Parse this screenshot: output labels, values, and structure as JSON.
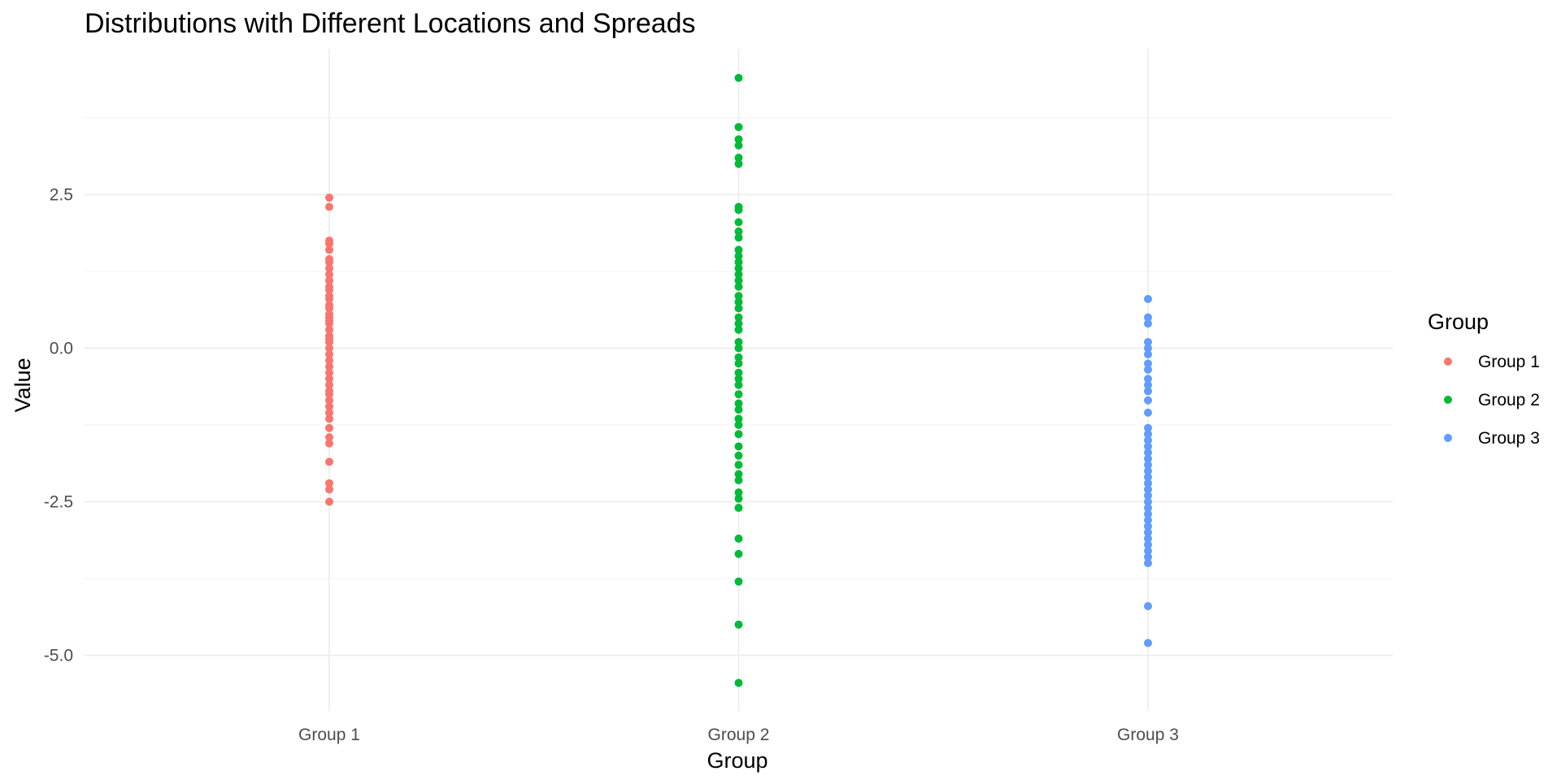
{
  "chart_data": {
    "type": "scatter",
    "title": "Distributions with Different Locations and Spreads",
    "xlabel": "Group",
    "ylabel": "Value",
    "categories": [
      "Group 1",
      "Group 2",
      "Group 3"
    ],
    "ylim": [
      -5.9,
      4.4
    ],
    "y_ticks": [
      2.5,
      0.0,
      -2.5,
      -5.0
    ],
    "y_tick_labels": [
      "2.5",
      "0.0",
      "-2.5",
      "-5.0"
    ],
    "grid": true,
    "legend": {
      "title": "Group",
      "position": "right"
    },
    "series": [
      {
        "name": "Group 1",
        "color": "#F8766D",
        "values": [
          2.45,
          2.3,
          1.75,
          1.7,
          1.6,
          1.45,
          1.4,
          1.3,
          1.2,
          1.1,
          1.0,
          0.95,
          0.85,
          0.8,
          0.7,
          0.65,
          0.55,
          0.5,
          0.45,
          0.4,
          0.3,
          0.2,
          0.15,
          0.1,
          0.0,
          -0.1,
          -0.2,
          -0.3,
          -0.4,
          -0.5,
          -0.6,
          -0.7,
          -0.75,
          -0.85,
          -0.95,
          -1.05,
          -1.15,
          -1.3,
          -1.45,
          -1.55,
          -1.85,
          -2.2,
          -2.3,
          -2.5
        ]
      },
      {
        "name": "Group 2",
        "color": "#00BA38",
        "values": [
          4.4,
          3.6,
          3.4,
          3.3,
          3.1,
          3.0,
          2.3,
          2.25,
          2.05,
          1.9,
          1.8,
          1.6,
          1.5,
          1.4,
          1.3,
          1.2,
          1.1,
          1.0,
          0.85,
          0.75,
          0.65,
          0.5,
          0.4,
          0.3,
          0.1,
          0.0,
          -0.15,
          -0.25,
          -0.4,
          -0.5,
          -0.6,
          -0.75,
          -0.9,
          -1.0,
          -1.15,
          -1.25,
          -1.4,
          -1.6,
          -1.75,
          -1.9,
          -2.05,
          -2.15,
          -2.35,
          -2.45,
          -2.6,
          -3.1,
          -3.35,
          -3.8,
          -4.5,
          -5.45
        ]
      },
      {
        "name": "Group 3",
        "color": "#619CFF",
        "values": [
          0.8,
          0.5,
          0.4,
          0.1,
          0.0,
          -0.1,
          -0.25,
          -0.35,
          -0.5,
          -0.6,
          -0.7,
          -0.85,
          -1.05,
          -1.3,
          -1.4,
          -1.5,
          -1.6,
          -1.7,
          -1.8,
          -1.9,
          -2.0,
          -2.1,
          -2.2,
          -2.3,
          -2.4,
          -2.5,
          -2.6,
          -2.7,
          -2.8,
          -2.9,
          -3.0,
          -3.1,
          -3.2,
          -3.3,
          -3.4,
          -3.5,
          -4.2,
          -4.8
        ]
      }
    ]
  }
}
